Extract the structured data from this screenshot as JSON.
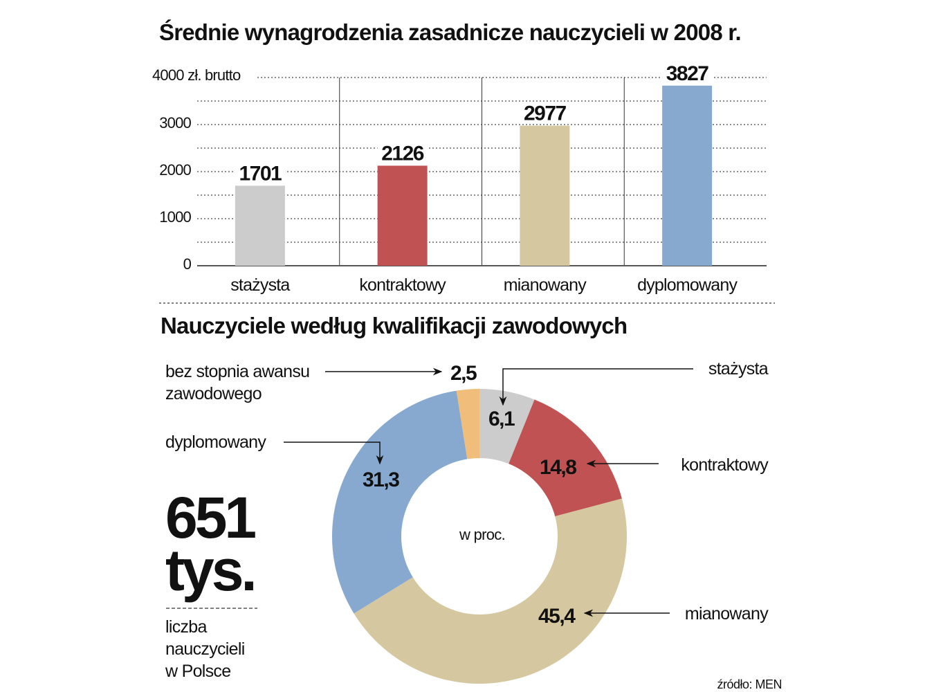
{
  "chart_data": [
    {
      "type": "bar",
      "title": "Średnie wynagrodzenia zasadnicze nauczycieli w 2008 r.",
      "ylabel": "zł. brutto",
      "ylim": [
        0,
        4000
      ],
      "yticks": [
        "0",
        "1000",
        "2000",
        "3000",
        "4000"
      ],
      "grid": true,
      "categories": [
        "stażysta",
        "kontraktowy",
        "mianowany",
        "dyplomowany"
      ],
      "values": [
        1701,
        2126,
        2977,
        3827
      ],
      "colors": [
        "#cccccc",
        "#c05253",
        "#d5c8a0",
        "#87a9cf"
      ]
    },
    {
      "type": "pie",
      "title": "Nauczyciele według kwalifikacji zawodowych",
      "center_label": "w proc.",
      "slices": [
        {
          "label": "stażysta",
          "value": 6.1,
          "value_label": "6,1",
          "color": "#cccccc"
        },
        {
          "label": "kontraktowy",
          "value": 14.8,
          "value_label": "14,8",
          "color": "#c05253"
        },
        {
          "label": "mianowany",
          "value": 45.4,
          "value_label": "45,4",
          "color": "#d5c8a0"
        },
        {
          "label": "dyplomowany",
          "value": 31.3,
          "value_label": "31,3",
          "color": "#87a9cf"
        },
        {
          "label_lines": [
            "bez stopnia awansu",
            "zawodowego"
          ],
          "value": 2.5,
          "value_label": "2,5",
          "color": "#f0bd7a"
        }
      ]
    }
  ],
  "summary": {
    "number": "651",
    "unit": "tys.",
    "caption_lines": [
      "liczba",
      "nauczycieli",
      "w Polsce"
    ]
  },
  "source": "źródło: MEN"
}
